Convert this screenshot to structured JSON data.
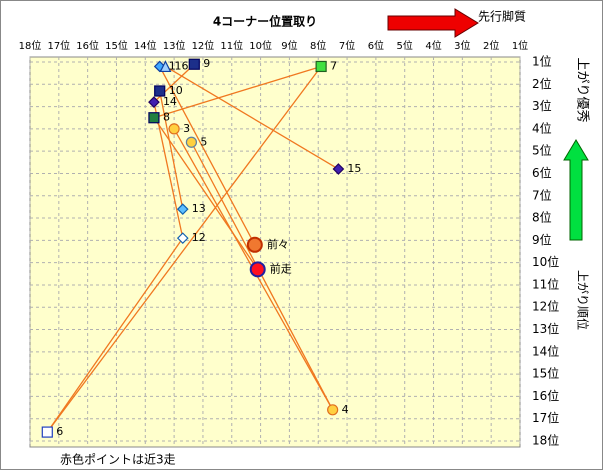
{
  "chart_data": {
    "type": "scatter",
    "title": "4コーナー位置取り",
    "arrow_label": "先行脚質",
    "good_label": "上がり優秀",
    "y_label": "上がり順位",
    "note": "赤色ポイントは近3走",
    "xlim": [
      18,
      1
    ],
    "ylim": [
      1,
      18
    ],
    "xticks": [
      {
        "value": 18,
        "label": "18位"
      },
      {
        "value": 17,
        "label": "17位"
      },
      {
        "value": 16,
        "label": "16位"
      },
      {
        "value": 15,
        "label": "15位"
      },
      {
        "value": 14,
        "label": "14位"
      },
      {
        "value": 13,
        "label": "13位"
      },
      {
        "value": 12,
        "label": "12位"
      },
      {
        "value": 11,
        "label": "11位"
      },
      {
        "value": 10,
        "label": "10位"
      },
      {
        "value": 9,
        "label": "9位"
      },
      {
        "value": 8,
        "label": "8位"
      },
      {
        "value": 7,
        "label": "7位"
      },
      {
        "value": 6,
        "label": "6位"
      },
      {
        "value": 5,
        "label": "5位"
      },
      {
        "value": 4,
        "label": "4位"
      },
      {
        "value": 3,
        "label": "3位"
      },
      {
        "value": 2,
        "label": "2位"
      },
      {
        "value": 1,
        "label": "1位"
      }
    ],
    "yticks": [
      {
        "value": 1,
        "label": "1位"
      },
      {
        "value": 2,
        "label": "2位"
      },
      {
        "value": 3,
        "label": "3位"
      },
      {
        "value": 4,
        "label": "4位"
      },
      {
        "value": 5,
        "label": "5位"
      },
      {
        "value": 6,
        "label": "6位"
      },
      {
        "value": 7,
        "label": "7位"
      },
      {
        "value": 8,
        "label": "8位"
      },
      {
        "value": 9,
        "label": "9位"
      },
      {
        "value": 10,
        "label": "10位"
      },
      {
        "value": 11,
        "label": "11位"
      },
      {
        "value": 12,
        "label": "12位"
      },
      {
        "value": 13,
        "label": "13位"
      },
      {
        "value": 14,
        "label": "14位"
      },
      {
        "value": 15,
        "label": "15位"
      },
      {
        "value": 16,
        "label": "16位"
      },
      {
        "value": 17,
        "label": "17位"
      },
      {
        "value": 18,
        "label": "18位"
      }
    ],
    "grid": true,
    "line_color": "#f07820",
    "points": [
      {
        "name": "9",
        "x": 12.3,
        "y": 1.1,
        "marker": "square",
        "color": "#1c2f8a",
        "edge": "#000060"
      },
      {
        "name": "1",
        "x": 13.5,
        "y": 1.2,
        "marker": "diamond",
        "color": "#40a8ff",
        "edge": "#1040a0"
      },
      {
        "name": "16",
        "x": 13.3,
        "y": 1.2,
        "marker": "triangle",
        "color": "#a0d0ff",
        "edge": "#1040a0"
      },
      {
        "name": "7",
        "x": 7.9,
        "y": 1.2,
        "marker": "square",
        "color": "#40e040",
        "edge": "#206020"
      },
      {
        "name": "10",
        "x": 13.5,
        "y": 2.3,
        "marker": "square",
        "color": "#1c2f8a",
        "edge": "#000060"
      },
      {
        "name": "14",
        "x": 13.7,
        "y": 2.8,
        "marker": "diamond",
        "color": "#4020b0",
        "edge": "#200060"
      },
      {
        "name": "8",
        "x": 13.7,
        "y": 3.5,
        "marker": "square",
        "color": "#208040",
        "edge": "#000060"
      },
      {
        "name": "3",
        "x": 13,
        "y": 4.0,
        "marker": "circle",
        "color": "#ffd040",
        "edge": "#e07020"
      },
      {
        "name": "5",
        "x": 12.4,
        "y": 4.6,
        "marker": "circle",
        "color": "#ffd040",
        "edge": "#6080a0"
      },
      {
        "name": "15",
        "x": 7.3,
        "y": 5.8,
        "marker": "diamond",
        "color": "#4020b0",
        "edge": "#200060"
      },
      {
        "name": "13",
        "x": 12.7,
        "y": 7.6,
        "marker": "diamond",
        "color": "#60c0ff",
        "edge": "#1060b0"
      },
      {
        "name": "12",
        "x": 12.7,
        "y": 8.9,
        "marker": "diamond",
        "color": "#ffffff",
        "edge": "#1060b0"
      },
      {
        "name": "前々",
        "x": 10.2,
        "y": 9.2,
        "marker": "big-circle",
        "color": "#f07830",
        "edge": "#c03000"
      },
      {
        "name": "前走",
        "x": 10.1,
        "y": 10.3,
        "marker": "big-circle",
        "color": "#ff1020",
        "edge": "#2020a0"
      },
      {
        "name": "4",
        "x": 7.5,
        "y": 16.6,
        "marker": "circle",
        "color": "#ffd040",
        "edge": "#e07020"
      },
      {
        "name": "6",
        "x": 17.4,
        "y": 17.6,
        "marker": "square",
        "color": "#ffffff",
        "edge": "#2040c0"
      }
    ],
    "links": [
      [
        "6",
        "7"
      ],
      [
        "6",
        "12"
      ],
      [
        "12",
        "14"
      ],
      [
        "13",
        "10"
      ],
      [
        "8",
        "7"
      ],
      [
        "16",
        "15"
      ],
      [
        "9",
        "14"
      ],
      [
        "3",
        "4"
      ],
      [
        "5",
        "4"
      ],
      [
        "8",
        "前走"
      ],
      [
        "1",
        "前々"
      ]
    ]
  }
}
